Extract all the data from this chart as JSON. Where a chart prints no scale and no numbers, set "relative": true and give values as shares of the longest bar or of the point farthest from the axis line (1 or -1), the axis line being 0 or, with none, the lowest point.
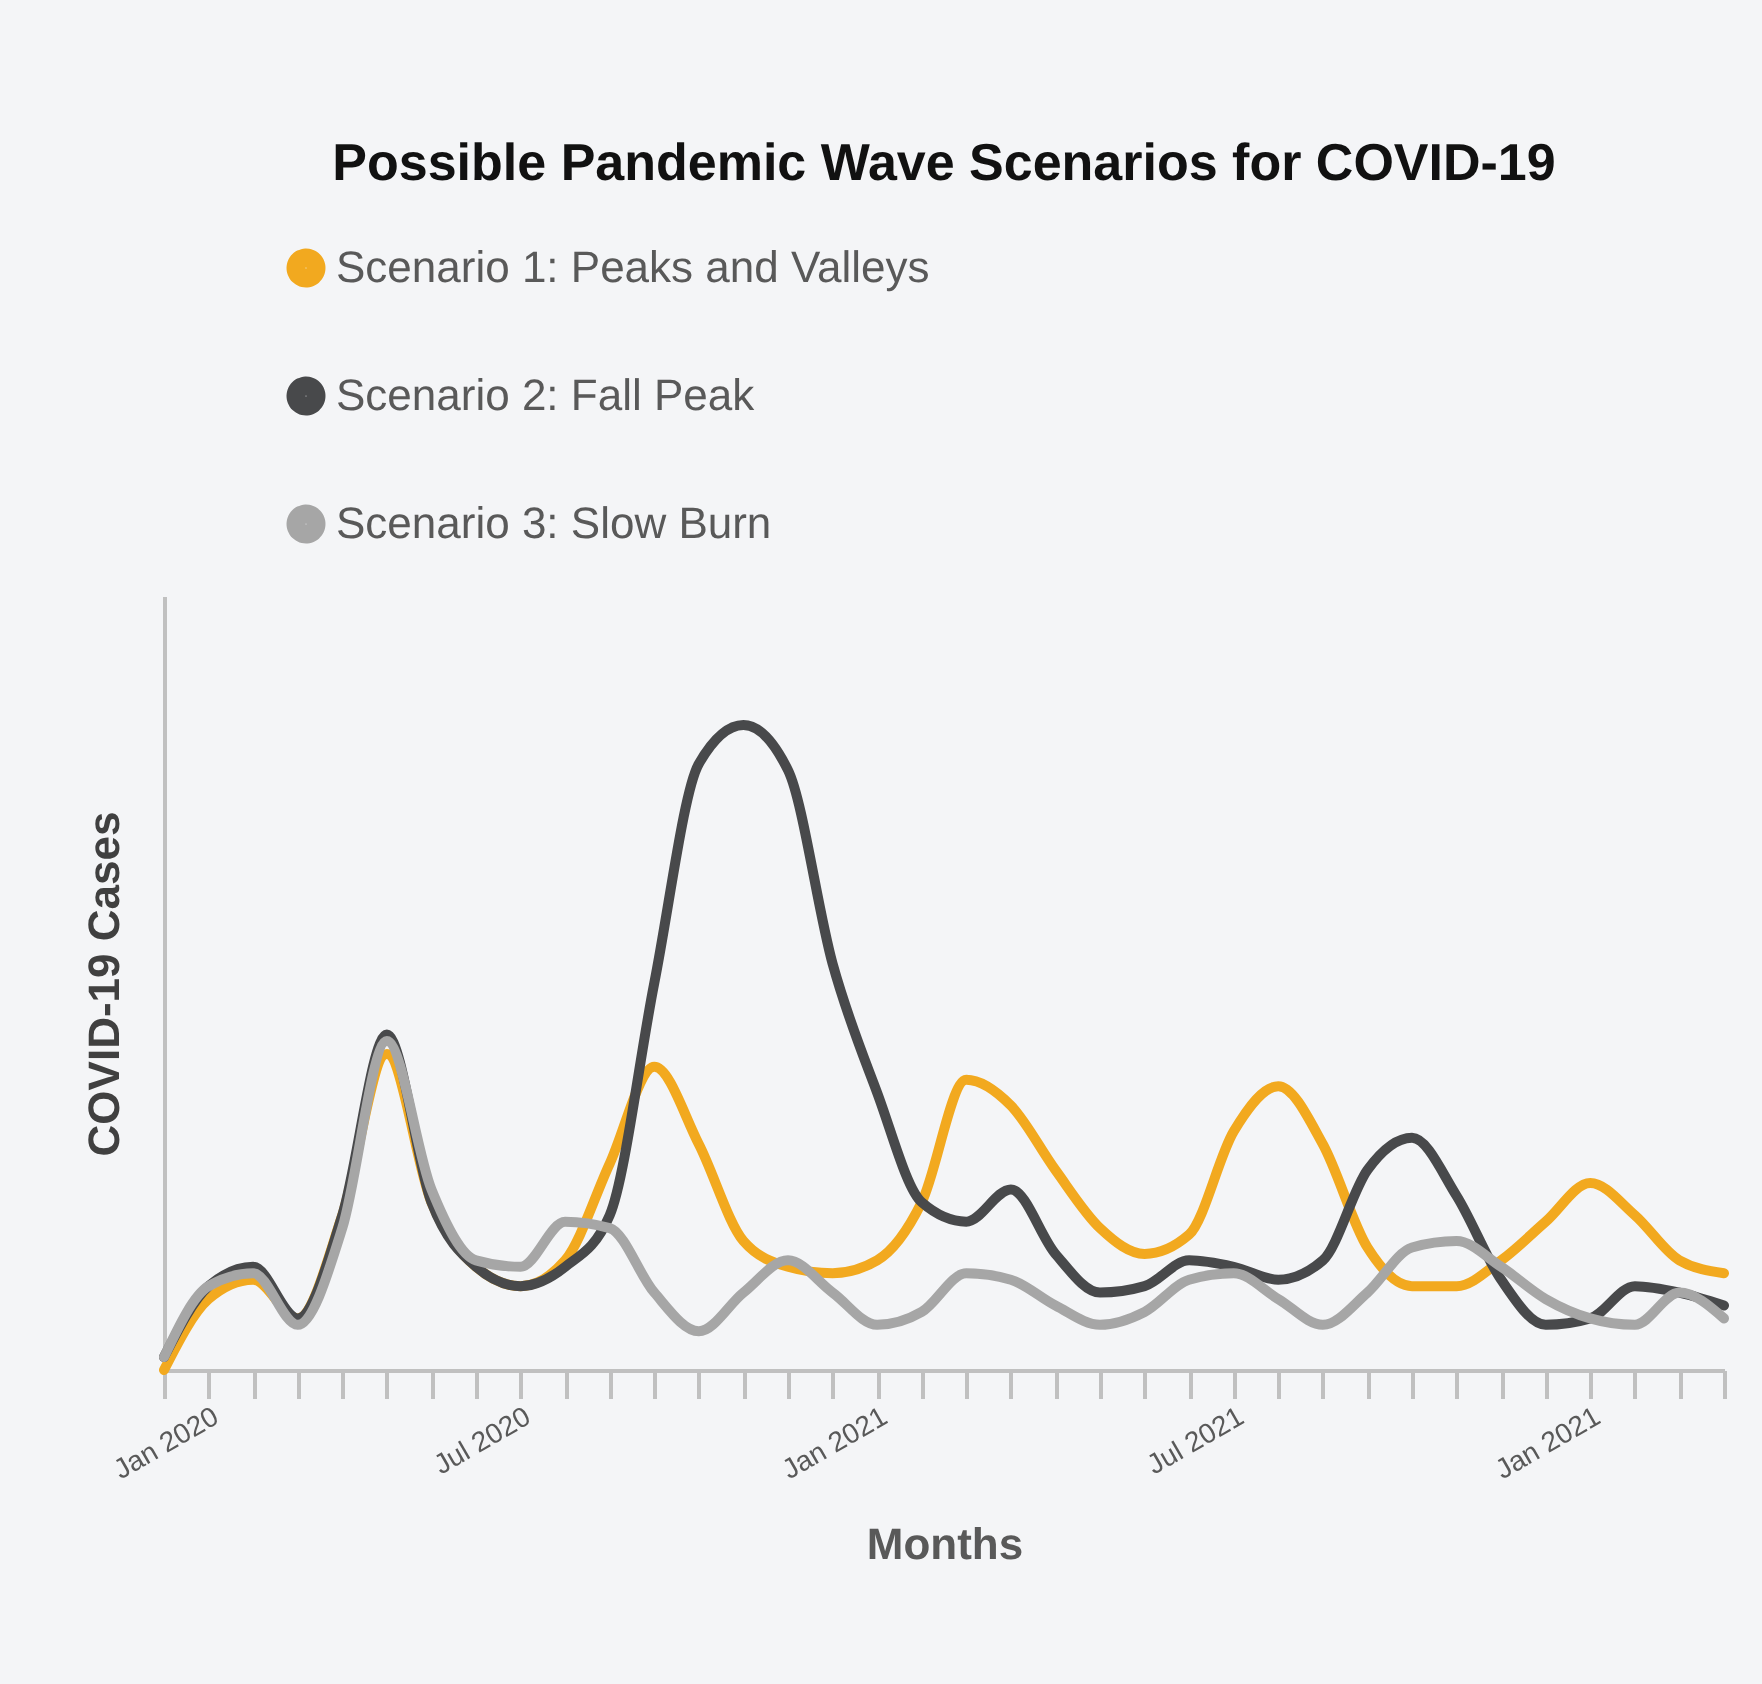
{
  "chart_data": {
    "type": "line",
    "title": "Possible Pandemic Wave Scenarios for COVID-19",
    "xlabel": "Months",
    "ylabel": "COVID-19 Cases",
    "relative": true,
    "legend": "top",
    "marker": "none",
    "line_style": "solid",
    "grid": false,
    "categories": [
      null,
      "Jan 2020",
      null,
      null,
      null,
      null,
      null,
      null,
      "Jul 2020",
      null,
      null,
      null,
      null,
      null,
      null,
      null,
      "Jan 2021",
      null,
      null,
      null,
      null,
      null,
      null,
      null,
      "Jul 2021",
      null,
      null,
      null,
      null,
      null,
      null,
      null,
      "Jan 2021",
      null,
      null,
      null
    ],
    "series": [
      {
        "name": "Scenario 1: Peaks and Valleys",
        "color": "#f2a91f",
        "values": [
          0,
          0.11,
          0.14,
          0.08,
          0.24,
          0.49,
          0.26,
          0.16,
          0.13,
          0.17,
          0.32,
          0.47,
          0.35,
          0.2,
          0.16,
          0.15,
          0.17,
          0.26,
          0.45,
          0.41,
          0.31,
          0.22,
          0.18,
          0.21,
          0.37,
          0.44,
          0.35,
          0.19,
          0.13,
          0.13,
          0.17,
          0.23,
          0.29,
          0.24,
          0.17,
          0.15
        ]
      },
      {
        "name": "Scenario 2: Fall Peak",
        "color": "#48494b",
        "values": [
          0.02,
          0.13,
          0.16,
          0.08,
          0.24,
          0.52,
          0.26,
          0.16,
          0.13,
          0.16,
          0.24,
          0.6,
          0.94,
          1.0,
          0.93,
          0.63,
          0.43,
          0.26,
          0.23,
          0.28,
          0.18,
          0.12,
          0.13,
          0.17,
          0.16,
          0.14,
          0.17,
          0.31,
          0.36,
          0.27,
          0.14,
          0.07,
          0.08,
          0.13,
          0.12,
          0.1
        ]
      },
      {
        "name": "Scenario 3: Slow Burn",
        "color": "#a6a6a6",
        "values": [
          0.02,
          0.13,
          0.15,
          0.07,
          0.22,
          0.51,
          0.28,
          0.17,
          0.16,
          0.23,
          0.22,
          0.12,
          0.06,
          0.12,
          0.17,
          0.12,
          0.07,
          0.09,
          0.15,
          0.14,
          0.1,
          0.07,
          0.09,
          0.14,
          0.15,
          0.11,
          0.07,
          0.12,
          0.19,
          0.2,
          0.16,
          0.11,
          0.08,
          0.07,
          0.12,
          0.08
        ]
      }
    ]
  }
}
